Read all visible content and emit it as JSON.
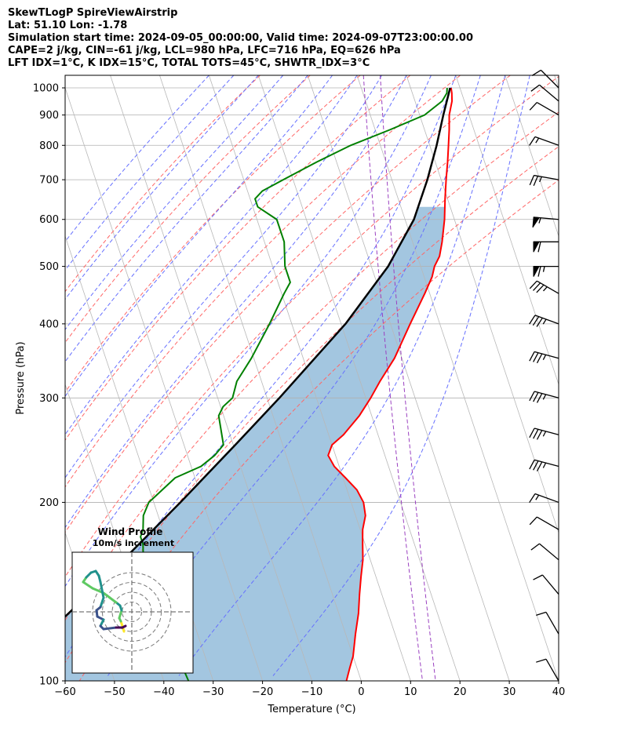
{
  "header": {
    "line1": "SkewTLogP SpireViewAirstrip",
    "line2": "Lat: 51.10   Lon: -1.78",
    "line3": "Simulation start time: 2024-09-05_00:00:00, Valid time: 2024-09-07T23:00:00.00",
    "line4": "CAPE=2 j/kg, CIN=-61 j/kg, LCL=980 hPa, LFC=716 hPa, EQ=626 hPa",
    "line5": "LFT IDX=1$^\\circ$C, K IDX=15$^\\circ$C, TOTAL TOTS=45$^\\circ$C, SHWTR_IDX=3$^\\circ$C"
  },
  "colors": {
    "temperature": "#ff0000",
    "dewpoint": "#008000",
    "parcel": "#000000",
    "cape_fill": "#a3c6e0",
    "dry_adiabat": "#ff6666",
    "moist_adiabat": "#6670ff",
    "mixing_ratio": "#9a40c0",
    "isotherm": "#b8b8b8",
    "grid": "#b0b0b0"
  },
  "chart_data": {
    "type": "skewt",
    "title": "SkewTLogP SpireViewAirstrip",
    "xlabel": "Temperature ($^\\circ$C)",
    "ylabel": "Pressure (hPa)",
    "xlim": [
      -60,
      40
    ],
    "ylim_hpa": [
      1050,
      100
    ],
    "xticks": [
      -60,
      -50,
      -40,
      -30,
      -20,
      -10,
      0,
      10,
      20,
      30,
      40
    ],
    "yticks": [
      100,
      200,
      300,
      400,
      500,
      600,
      700,
      800,
      900,
      1000
    ],
    "skew_deg_per_decade": 40,
    "isotherms_c": [
      -170,
      -160,
      -150,
      -140,
      -130,
      -120,
      -110,
      -100,
      -90,
      -80,
      -70,
      -60,
      -50,
      -40,
      -30,
      -20,
      -10,
      0,
      10,
      20,
      30,
      40
    ],
    "dry_adiabats_theta_k": [
      250,
      260,
      270,
      280,
      290,
      300,
      310,
      320,
      330,
      340
    ],
    "moist_adiabat_bottom_c": [
      -30,
      -25,
      -20,
      -15,
      -10,
      -5,
      0,
      5,
      10,
      15,
      20,
      25,
      30,
      35
    ],
    "mixing_ratio_line_mark": [
      0.004,
      0.0051
    ],
    "temperature_profile": {
      "name": "Temperature",
      "p": [
        1000,
        980,
        950,
        900,
        850,
        800,
        750,
        700,
        650,
        600,
        550,
        520,
        500,
        480,
        450,
        400,
        350,
        320,
        300,
        280,
        260,
        250,
        240,
        230,
        220,
        210,
        200,
        190,
        180,
        175,
        170,
        160,
        150,
        140,
        130,
        120,
        110,
        105,
        100
      ],
      "T": [
        18.2,
        18,
        17.5,
        16,
        15,
        13.8,
        12.5,
        11,
        9.5,
        8,
        6,
        4.5,
        2.8,
        1.6,
        -1,
        -6,
        -11.5,
        -16,
        -19,
        -22.5,
        -27,
        -30,
        -31.5,
        -31,
        -29.5,
        -28,
        -27.5,
        -28,
        -29.5,
        -30,
        -30.5,
        -31.5,
        -33,
        -34.5,
        -36,
        -38,
        -40,
        -41.5,
        -43
      ]
    },
    "dewpoint_profile": {
      "name": "Dewpoint",
      "p": [
        1000,
        980,
        950,
        900,
        850,
        800,
        750,
        700,
        670,
        650,
        630,
        600,
        550,
        500,
        470,
        450,
        400,
        350,
        320,
        300,
        290,
        280,
        250,
        240,
        230,
        220,
        200,
        190,
        180,
        175,
        170,
        160,
        150,
        140,
        130,
        120,
        110,
        100
      ],
      "Td": [
        17.4,
        17,
        15.5,
        11,
        3,
        -6,
        -14,
        -22,
        -27,
        -29,
        -29,
        -26,
        -26,
        -27.5,
        -27.5,
        -29.5,
        -34.5,
        -40.5,
        -45,
        -47,
        -49.5,
        -51,
        -52,
        -54.5,
        -58,
        -64,
        -71,
        -73,
        -74,
        -75,
        -75,
        -76,
        -76,
        -76,
        -76,
        -75.5,
        -75.5,
        -75
      ]
    },
    "parcel_profile": {
      "name": "Parcel",
      "p": [
        1000,
        980,
        900,
        800,
        700,
        600,
        500,
        400,
        300,
        250,
        200,
        150,
        100
      ],
      "T": [
        18,
        17.4,
        14.8,
        11.4,
        7.2,
        1.8,
        -6.6,
        -19.1,
        -37.5,
        -49.6,
        -64.6,
        -84.5,
        -113.5
      ]
    },
    "cape_shading": "between parcel and temperature where parcel is warmer",
    "wind_barbs": {
      "p": [
        100,
        120,
        140,
        160,
        180,
        200,
        230,
        260,
        300,
        350,
        400,
        450,
        500,
        550,
        600,
        700,
        800,
        900,
        950,
        1000
      ],
      "speed_kt": [
        10,
        10,
        10,
        10,
        10,
        15,
        35,
        35,
        35,
        35,
        35,
        35,
        65,
        60,
        55,
        25,
        15,
        10,
        10,
        10
      ],
      "dir_deg": [
        330,
        330,
        320,
        310,
        300,
        290,
        285,
        285,
        285,
        285,
        290,
        300,
        270,
        270,
        275,
        280,
        290,
        300,
        310,
        315
      ]
    },
    "hodograph": {
      "title": "Wind Profile",
      "subtitle": "10m/s increment",
      "rings_ms": [
        10,
        20,
        30,
        40
      ],
      "u": [
        -1,
        -2,
        -3,
        -4,
        -6,
        -8,
        -10,
        -12,
        -14,
        -16,
        -18,
        -20,
        -22,
        -24,
        -26,
        -28,
        -30,
        -32,
        -34,
        -36,
        -38,
        -40,
        -42,
        -44,
        -46,
        -48,
        -50,
        -52,
        -54,
        -56,
        -58,
        -60,
        -58,
        -55,
        -50
      ],
      "v": [
        1,
        2,
        3,
        4,
        5,
        6,
        7,
        8,
        9,
        10,
        11,
        12,
        13,
        14,
        15,
        16,
        17,
        18,
        19,
        20,
        21,
        22,
        23,
        24,
        25,
        26,
        27,
        28,
        29,
        30,
        31,
        32,
        34,
        36,
        38
      ],
      "color_map": "viridis"
    }
  }
}
